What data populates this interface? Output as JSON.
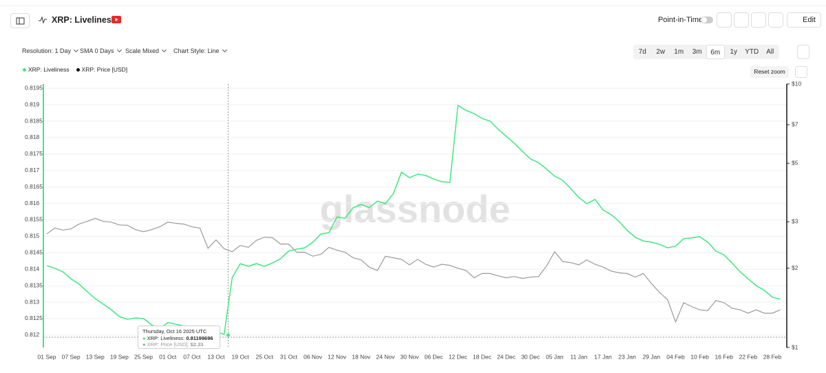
{
  "header": {
    "title": "XRP: Liveliness",
    "point_in_time": "Point-in-Time",
    "edit": "Edit"
  },
  "toolbar": {
    "resolution": "Resolution: 1 Day",
    "sma": "SMA 0 Days",
    "scale": "Scale Mixed",
    "style": "Chart Style: Line",
    "ranges": [
      "7d",
      "2w",
      "1m",
      "3m",
      "6m",
      "1y",
      "YTD",
      "All"
    ],
    "active_range": "6m",
    "reset_zoom": "Reset zoom"
  },
  "tooltip": {
    "date": "Thursday, Oct 16 2025 UTC",
    "liveliness_label": "XRP: Liveliness:",
    "liveliness_value": "0.81199696",
    "price_label": "XRP: Price [USD]:",
    "price_value": "$2.33"
  },
  "watermark": "glassnode",
  "chart_data": {
    "type": "line",
    "categories": [
      "01 Sep",
      null,
      null,
      "07 Sep",
      null,
      null,
      "13 Sep",
      null,
      null,
      "19 Sep",
      null,
      null,
      "25 Sep",
      null,
      null,
      "01 Oct",
      null,
      null,
      "07 Oct",
      null,
      null,
      "13 Oct",
      null,
      null,
      "19 Oct",
      null,
      null,
      "25 Oct",
      null,
      null,
      "31 Oct",
      null,
      null,
      "06 Nov",
      null,
      null,
      "12 Nov",
      null,
      null,
      "18 Nov",
      null,
      null,
      "24 Nov",
      null,
      null,
      "30 Nov",
      null,
      null,
      "06 Dec",
      null,
      null,
      "12 Dec",
      null,
      null,
      "18 Dec",
      null,
      null,
      "24 Dec",
      null,
      null,
      "30 Dec",
      null,
      null,
      "05 Jan",
      null,
      null,
      "11 Jan",
      null,
      null,
      "17 Jan",
      null,
      null,
      "23 Jan",
      null,
      null,
      "29 Jan",
      null,
      null,
      "04 Feb",
      null,
      null,
      "10 Feb",
      null,
      null,
      "16 Feb",
      null,
      null,
      "22 Feb",
      null,
      null,
      "28 Feb",
      null
    ],
    "series": [
      {
        "name": "XRP: Liveliness",
        "color": "#3ee87f",
        "values": [
          0.81411,
          0.81403,
          0.81392,
          0.81371,
          0.81355,
          0.81332,
          0.81311,
          0.81294,
          0.81277,
          0.81256,
          0.81248,
          0.81252,
          0.8125,
          0.81231,
          0.81219,
          0.81238,
          0.81233,
          0.81227,
          0.81223,
          0.81225,
          0.81219,
          0.8121,
          0.81202,
          0.81375,
          0.81417,
          0.81409,
          0.81417,
          0.81409,
          0.81419,
          0.81432,
          0.81455,
          0.81461,
          0.81465,
          0.81482,
          0.81507,
          0.81511,
          0.81559,
          0.81555,
          0.81587,
          0.81597,
          0.81587,
          0.81607,
          0.81599,
          0.8163,
          0.81695,
          0.81678,
          0.81689,
          0.81685,
          0.81674,
          0.81666,
          0.81664,
          0.81898,
          0.81883,
          0.81873,
          0.81858,
          0.8185,
          0.81825,
          0.81804,
          0.81783,
          0.81758,
          0.81735,
          0.81724,
          0.81704,
          0.81683,
          0.8167,
          0.81645,
          0.81618,
          0.81599,
          0.81612,
          0.8158,
          0.81566,
          0.81545,
          0.81518,
          0.81497,
          0.81486,
          0.81482,
          0.81476,
          0.81465,
          0.8147,
          0.81493,
          0.81495,
          0.81499,
          0.81482,
          0.81455,
          0.81444,
          0.81419,
          0.81392,
          0.81371,
          0.8135,
          0.81336,
          0.81315,
          0.81309
        ]
      },
      {
        "name": "XRP: Price [USD]",
        "color": "#9a9a9a",
        "axis": "y2",
        "values": [
          2.7,
          2.84,
          2.79,
          2.82,
          2.94,
          3.01,
          3.09,
          3.01,
          2.99,
          2.92,
          2.91,
          2.8,
          2.75,
          2.8,
          2.87,
          2.99,
          2.96,
          2.94,
          2.87,
          2.84,
          2.38,
          2.56,
          2.37,
          2.31,
          2.44,
          2.4,
          2.55,
          2.62,
          2.61,
          2.47,
          2.47,
          2.3,
          2.3,
          2.22,
          2.26,
          2.4,
          2.34,
          2.3,
          2.19,
          2.15,
          2.02,
          1.96,
          2.22,
          2.19,
          2.16,
          2.06,
          2.16,
          2.07,
          2.02,
          2.07,
          2.05,
          2.0,
          1.96,
          1.84,
          1.91,
          1.91,
          1.87,
          1.84,
          1.86,
          1.83,
          1.85,
          1.86,
          2.04,
          2.31,
          2.12,
          2.1,
          2.06,
          2.15,
          2.07,
          2.02,
          1.95,
          1.92,
          1.91,
          1.85,
          1.91,
          1.75,
          1.62,
          1.52,
          1.25,
          1.48,
          1.43,
          1.39,
          1.38,
          1.51,
          1.48,
          1.41,
          1.39,
          1.35,
          1.39,
          1.35,
          1.35,
          1.39
        ]
      }
    ],
    "ylim": [
      0.81162,
      0.81963
    ],
    "yticks": [
      0.812,
      0.8125,
      0.813,
      0.8135,
      0.814,
      0.8145,
      0.815,
      0.8155,
      0.816,
      0.8165,
      0.817,
      0.8175,
      0.818,
      0.8185,
      0.819,
      0.8195
    ],
    "y2lim": [
      1,
      10
    ],
    "y2scale": "log",
    "y2ticks": [
      {
        "value": 1,
        "label": "$1"
      },
      {
        "value": 2,
        "label": "$2"
      },
      {
        "value": 3,
        "label": "$3"
      },
      {
        "value": 5,
        "label": "$5"
      },
      {
        "value": 7,
        "label": "$7"
      },
      {
        "value": 10,
        "label": "$10"
      }
    ],
    "grid": true
  }
}
